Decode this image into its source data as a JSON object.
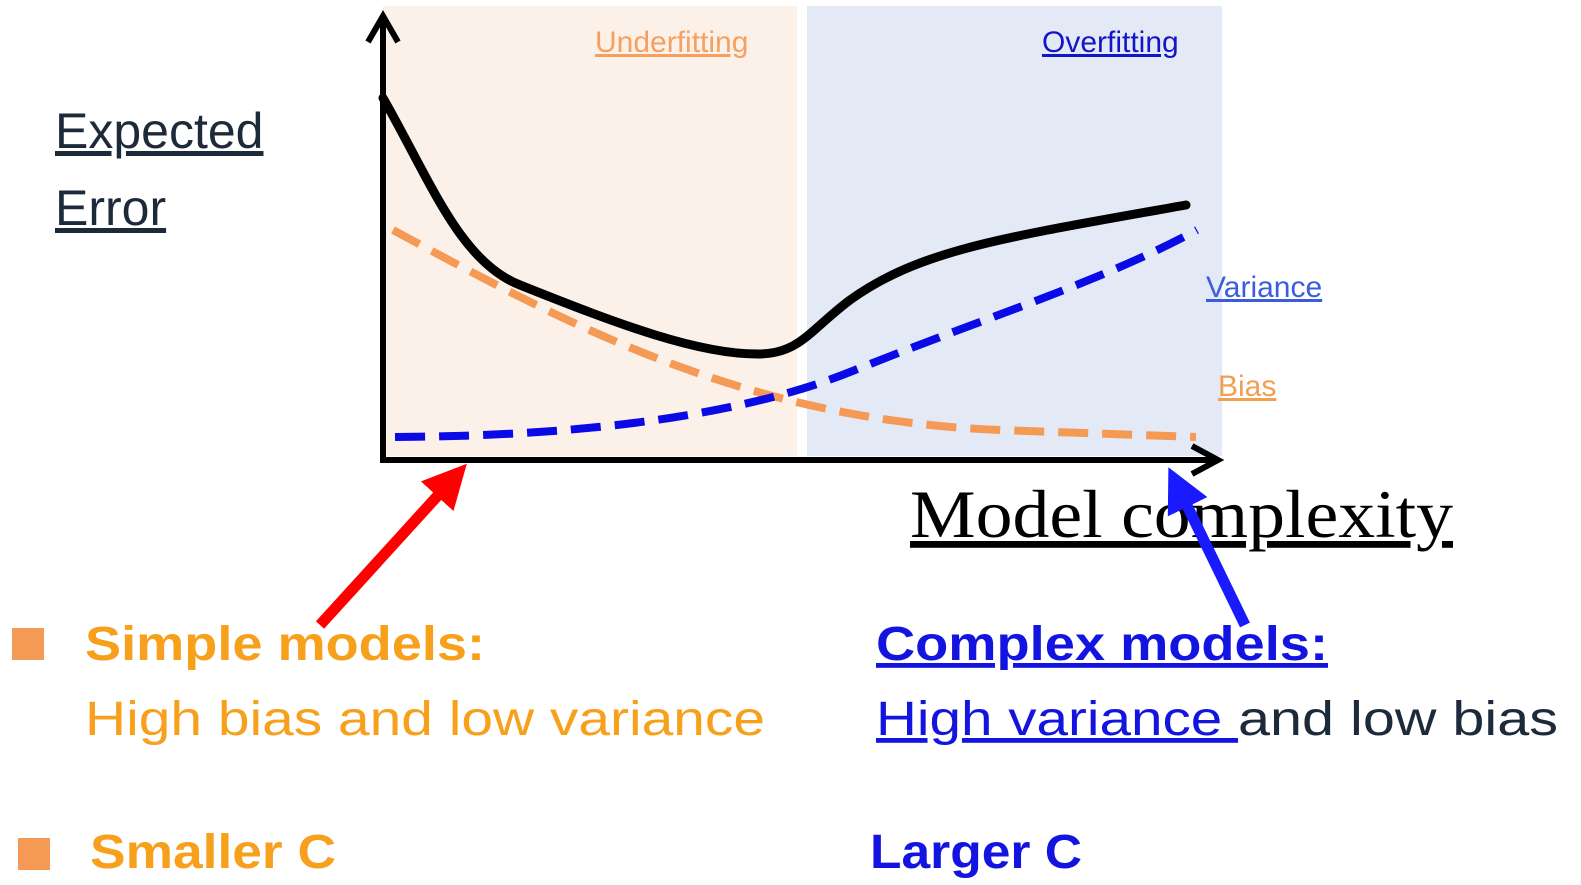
{
  "regions": {
    "underfitting": "Underfitting",
    "overfitting": "Overfitting"
  },
  "y_axis_label": [
    "Expected",
    "Error"
  ],
  "x_axis_label": "Model complexity",
  "curve_labels": {
    "variance": "Variance",
    "bias": "Bias"
  },
  "left": {
    "heading": "Simple models:",
    "text": "High bias and low variance",
    "bullet": "Smaller C"
  },
  "right": {
    "heading": "Complex models:",
    "text_highlight": "High variance ",
    "text_rest": "and low bias",
    "bullet": "Larger C"
  }
}
